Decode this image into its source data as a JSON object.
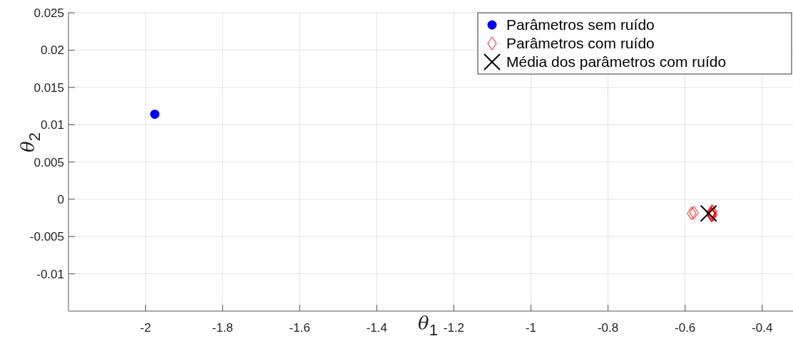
{
  "chart_data": {
    "type": "scatter",
    "xlabel": "θ$_{1}$",
    "ylabel": "θ$_{2}$",
    "xlim": [
      -2.2,
      -0.32
    ],
    "xticks": [
      -2,
      -1.8,
      -1.6,
      -1.4,
      -1.2,
      -1,
      -0.8,
      -0.6,
      -0.4
    ],
    "ylim": [
      -0.015,
      0.025
    ],
    "yticks": [
      -0.01,
      -0.005,
      0,
      0.005,
      0.01,
      0.015,
      0.02,
      0.025
    ],
    "grid": true,
    "legend": "top right",
    "series": [
      {
        "name": "Parâmetros sem ruído",
        "color": "#0000ff",
        "marker": "circle",
        "x": [
          -1.976
        ],
        "values": [
          0.0114
        ]
      },
      {
        "name": "Parâmetros com ruído",
        "color": "#ff0000",
        "marker": "diamond",
        "x": [
          -0.583,
          -0.577,
          -0.533,
          -0.531,
          -0.529,
          -0.532,
          -0.528,
          -0.53,
          -0.531
        ],
        "values": [
          -0.0019,
          -0.0018,
          -0.0018,
          -0.002,
          -0.0017,
          -0.0021,
          -0.0021,
          -0.0016,
          -0.0022
        ]
      },
      {
        "name": "Média dos parâmetros com ruído",
        "color": "#000000",
        "marker": "cross",
        "x": [
          -0.539
        ],
        "values": [
          -0.0019
        ]
      }
    ]
  }
}
